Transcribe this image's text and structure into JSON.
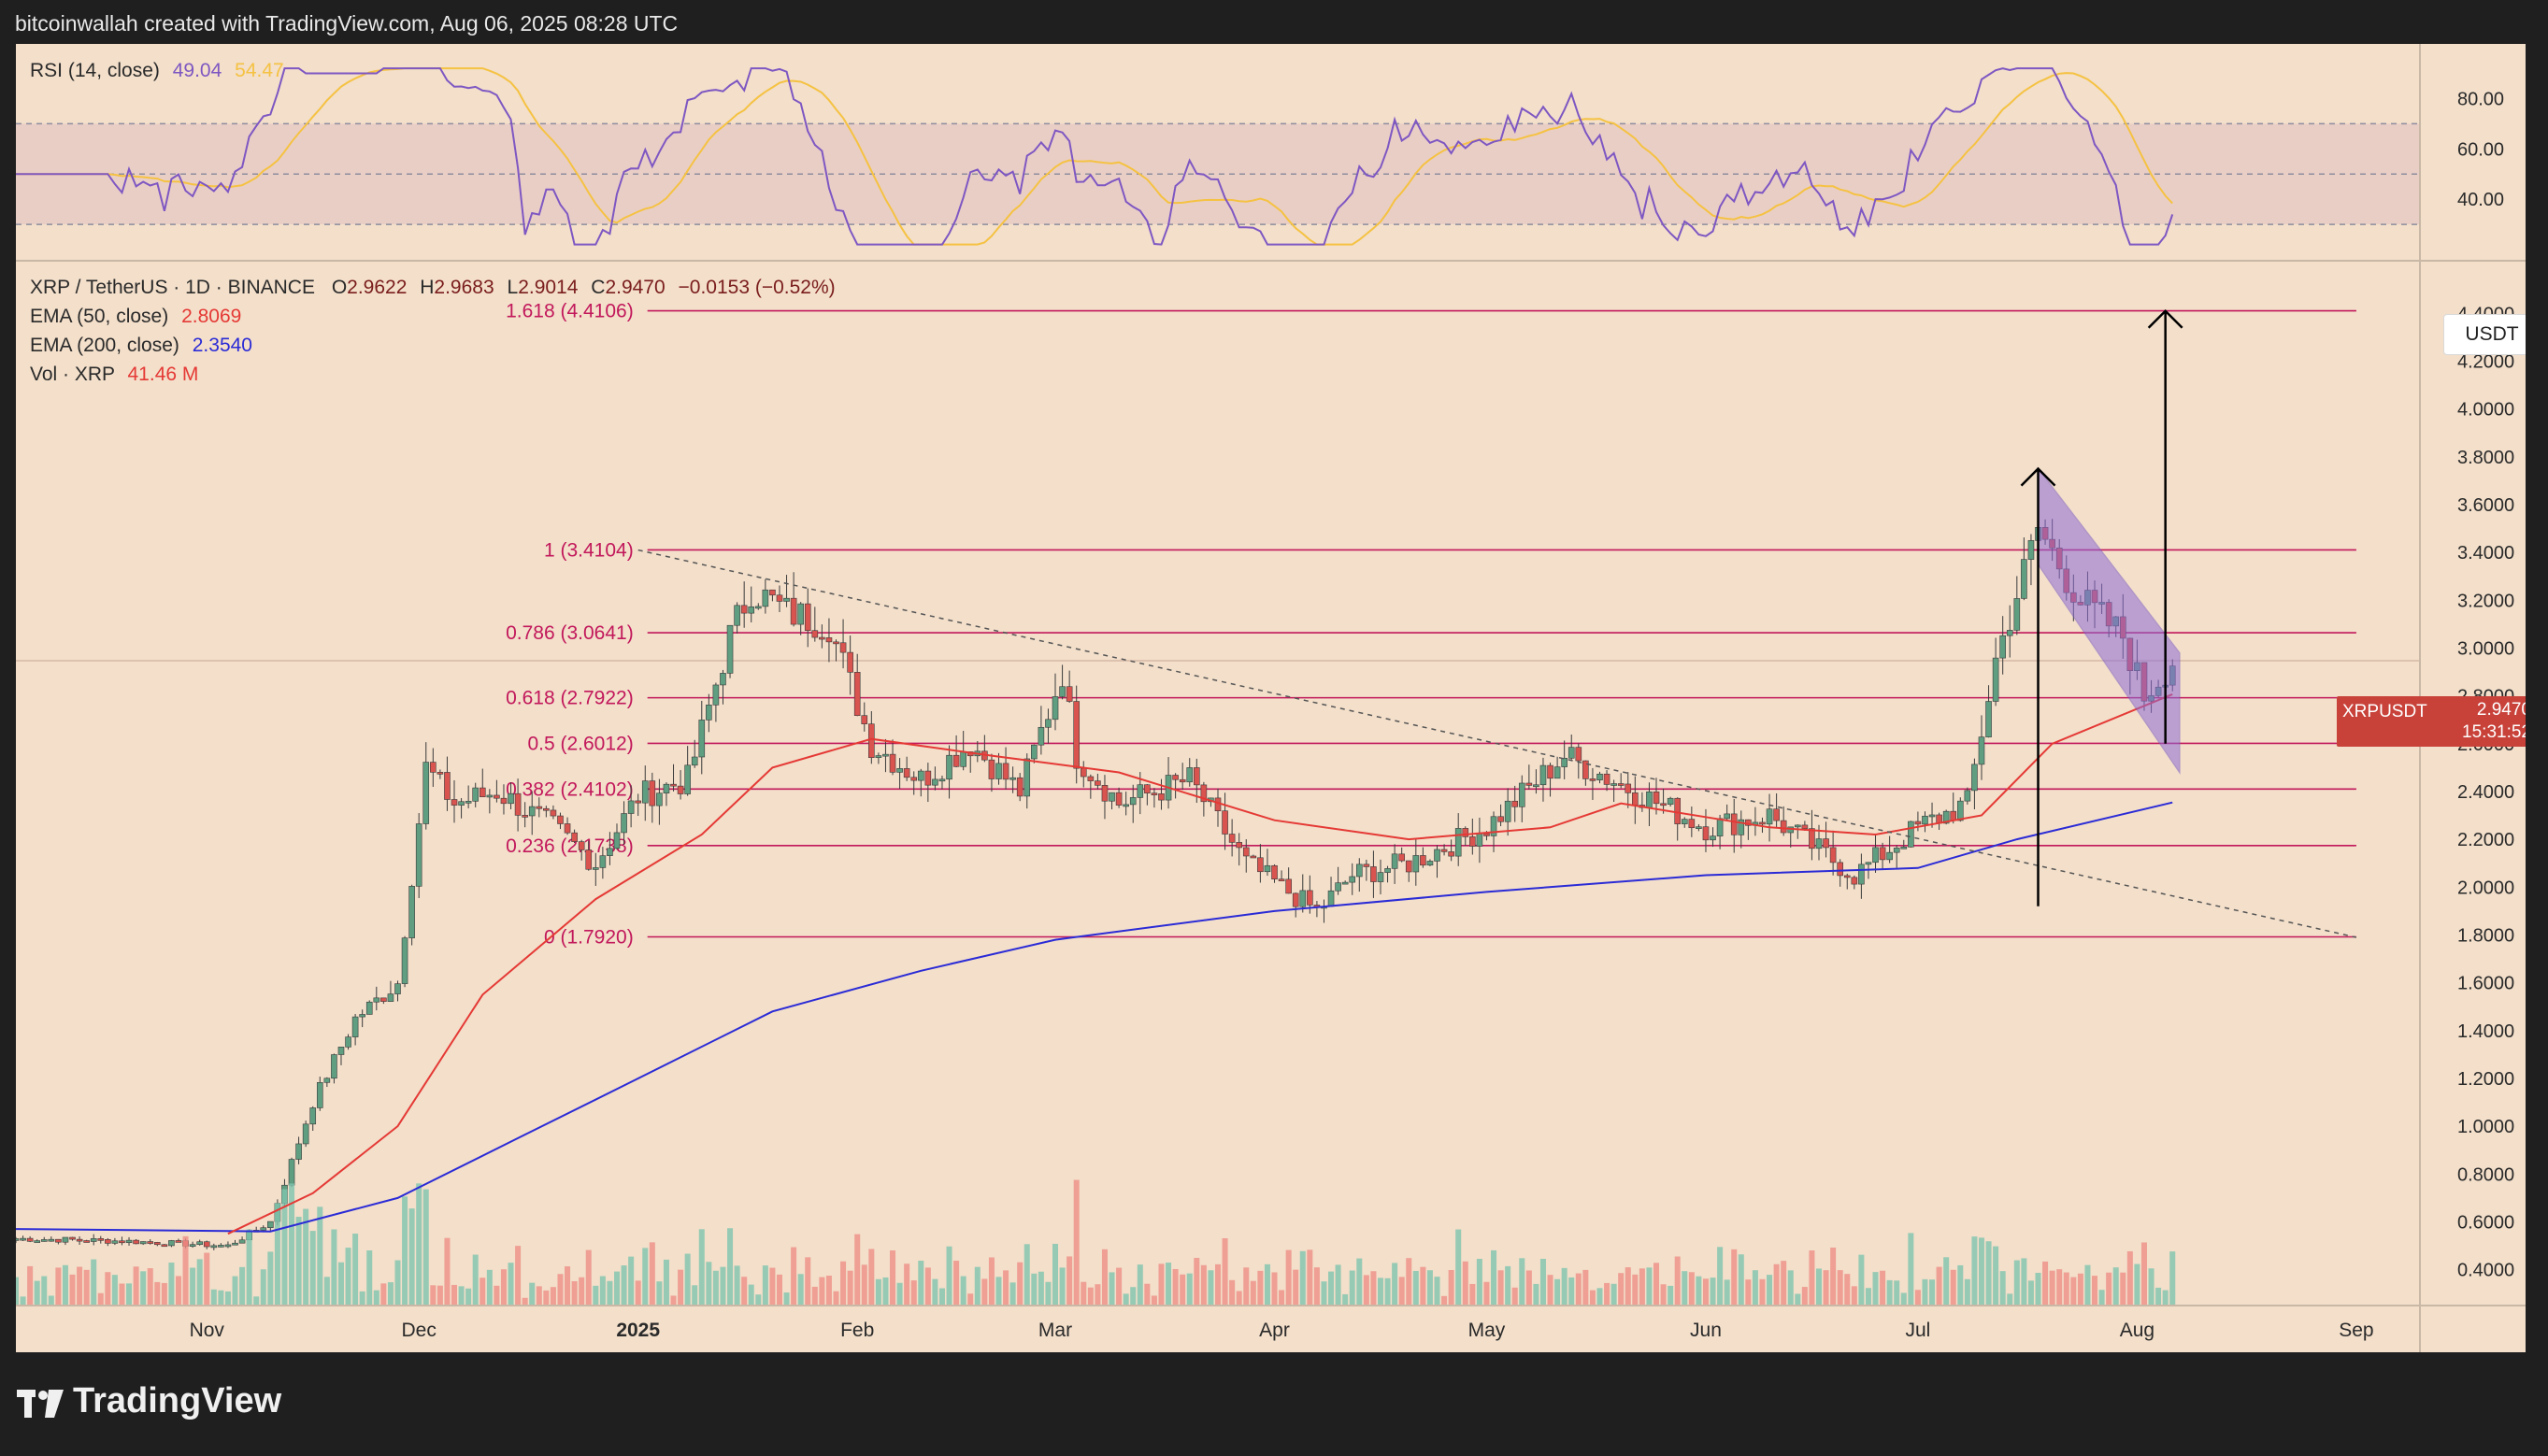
{
  "header": {
    "attribution": "bitcoinwallah created with TradingView.com, Aug 06, 2025 08:28 UTC"
  },
  "footer": {
    "brand": "TradingView"
  },
  "rsi": {
    "label": "RSI (14, close)",
    "value": "49.04",
    "ma_value": "54.47",
    "levels": [
      80.0,
      60.0,
      40.0
    ],
    "level_labels": [
      "80.00",
      "60.00",
      "40.00"
    ],
    "band": [
      30,
      70
    ],
    "midline": 50,
    "line_color": "#7e57c2",
    "ma_color": "#f5c242"
  },
  "legend": {
    "symbol": "XRP / TetherUS · 1D · BINANCE",
    "o_label": "O",
    "o": "2.9622",
    "h_label": "H",
    "h": "2.9683",
    "l_label": "L",
    "l": "2.9014",
    "c_label": "C",
    "c": "2.9470",
    "change": "−0.0153 (−0.52%)",
    "ema50_label": "EMA (50, close)",
    "ema50": "2.8069",
    "ema200_label": "EMA (200, close)",
    "ema200": "2.3540",
    "vol_label": "Vol · XRP",
    "vol": "41.46 M"
  },
  "price_axis": {
    "unit": "USDT",
    "ticks": [
      4.4,
      4.2,
      4.0,
      3.8,
      3.6,
      3.4,
      3.2,
      3.0,
      2.8,
      2.6,
      2.4,
      2.2,
      2.0,
      1.8,
      1.6,
      1.4,
      1.2,
      1.0,
      0.8,
      0.6,
      0.4
    ],
    "tick_labels": [
      "4.4000",
      "4.2000",
      "4.0000",
      "3.8000",
      "3.6000",
      "3.4000",
      "3.2000",
      "3.0000",
      "2.8000",
      "2.6000",
      "2.4000",
      "2.2000",
      "2.0000",
      "1.8000",
      "1.6000",
      "1.4000",
      "1.2000",
      "1.0000",
      "0.8000",
      "0.6000",
      "0.4000"
    ]
  },
  "price_tag": {
    "symbol": "XRPUSDT",
    "last": "2.9470",
    "countdown": "15:31:52",
    "color": "#c8423a"
  },
  "time_axis": {
    "labels": [
      "Nov",
      "Dec",
      "2025",
      "Feb",
      "Mar",
      "Apr",
      "May",
      "Jun",
      "Jul",
      "Aug",
      "Sep"
    ]
  },
  "colors": {
    "up": "#5f9e80",
    "down": "#d9534f",
    "ema50": "#e53935",
    "ema200": "#2b2bd6",
    "fib": "#c2185b",
    "channel": "#8e6bd6",
    "background": "#f3dfca"
  },
  "chart_data": {
    "type": "candlestick",
    "title": "XRP / TetherUS · 1D · BINANCE",
    "y_range": [
      0.25,
      4.62
    ],
    "x_range": [
      "2024-10-05",
      "2025-09-10"
    ],
    "fib_levels": [
      {
        "label": "1.618 (4.4106)",
        "value": 4.4106
      },
      {
        "label": "1 (3.4104)",
        "value": 3.4104
      },
      {
        "label": "0.786 (3.0641)",
        "value": 3.0641
      },
      {
        "label": "0.618 (2.7922)",
        "value": 2.7922
      },
      {
        "label": "0.5 (2.6012)",
        "value": 2.6012
      },
      {
        "label": "0.382 (2.4102)",
        "value": 2.4102
      },
      {
        "label": "0.236 (2.1738)",
        "value": 2.1738
      },
      {
        "label": "0 (1.7920)",
        "value": 1.792
      }
    ],
    "fib_x_range": [
      "2025-01-01",
      "2025-09-01"
    ],
    "close_series": {
      "x": [
        "2024-10-05",
        "2024-10-20",
        "2024-11-04",
        "2024-11-10",
        "2024-11-16",
        "2024-11-22",
        "2024-11-28",
        "2024-12-02",
        "2024-12-06",
        "2024-12-12",
        "2024-12-20",
        "2024-12-26",
        "2025-01-01",
        "2025-01-08",
        "2025-01-14",
        "2025-01-17",
        "2025-01-22",
        "2025-01-28",
        "2025-02-03",
        "2025-02-10",
        "2025-02-17",
        "2025-02-24",
        "2025-03-02",
        "2025-03-04",
        "2025-03-10",
        "2025-03-20",
        "2025-03-28",
        "2025-04-07",
        "2025-04-12",
        "2025-04-20",
        "2025-05-01",
        "2025-05-12",
        "2025-05-22",
        "2025-06-01",
        "2025-06-10",
        "2025-06-22",
        "2025-07-01",
        "2025-07-08",
        "2025-07-12",
        "2025-07-18",
        "2025-07-24",
        "2025-07-30",
        "2025-08-02",
        "2025-08-06"
      ],
      "values": [
        0.53,
        0.52,
        0.5,
        0.6,
        1.1,
        1.45,
        1.6,
        2.5,
        2.35,
        2.4,
        2.25,
        2.1,
        2.38,
        2.45,
        3.05,
        3.25,
        3.15,
        3.1,
        2.6,
        2.45,
        2.6,
        2.4,
        2.9,
        2.55,
        2.35,
        2.45,
        2.1,
        1.9,
        2.05,
        2.1,
        2.25,
        2.55,
        2.4,
        2.25,
        2.3,
        2.05,
        2.25,
        2.35,
        2.95,
        3.5,
        3.2,
        3.05,
        2.8,
        2.947
      ]
    },
    "ema50_series": {
      "x": [
        "2024-11-04",
        "2024-11-16",
        "2024-11-28",
        "2024-12-10",
        "2024-12-26",
        "2025-01-10",
        "2025-01-20",
        "2025-02-03",
        "2025-02-20",
        "2025-03-10",
        "2025-04-01",
        "2025-04-20",
        "2025-05-10",
        "2025-05-20",
        "2025-06-10",
        "2025-06-25",
        "2025-07-10",
        "2025-07-20",
        "2025-08-06"
      ],
      "values": [
        0.55,
        0.72,
        1.0,
        1.55,
        1.95,
        2.22,
        2.5,
        2.62,
        2.55,
        2.48,
        2.28,
        2.2,
        2.25,
        2.35,
        2.25,
        2.22,
        2.3,
        2.6,
        2.8069
      ]
    },
    "ema200_series": {
      "x": [
        "2024-10-05",
        "2024-11-10",
        "2024-11-28",
        "2024-12-15",
        "2025-01-01",
        "2025-01-20",
        "2025-02-10",
        "2025-03-01",
        "2025-04-01",
        "2025-05-01",
        "2025-06-01",
        "2025-07-01",
        "2025-07-15",
        "2025-08-06"
      ],
      "values": [
        0.57,
        0.56,
        0.7,
        0.95,
        1.2,
        1.48,
        1.65,
        1.78,
        1.9,
        1.98,
        2.05,
        2.08,
        2.2,
        2.354
      ]
    },
    "trendline": {
      "from": [
        "2025-01-01",
        3.41
      ],
      "to": [
        "2025-09-01",
        1.79
      ]
    },
    "channel": {
      "upper_from": [
        "2025-07-18",
        3.75
      ],
      "upper_to": [
        "2025-08-07",
        2.98
      ],
      "lower_from": [
        "2025-07-18",
        3.35
      ],
      "lower_to": [
        "2025-08-07",
        2.48
      ]
    },
    "arrows": [
      {
        "x": "2025-07-18",
        "from": 1.92,
        "to": 3.75
      },
      {
        "x": "2025-08-05",
        "from": 2.6,
        "to": 4.41
      }
    ]
  }
}
